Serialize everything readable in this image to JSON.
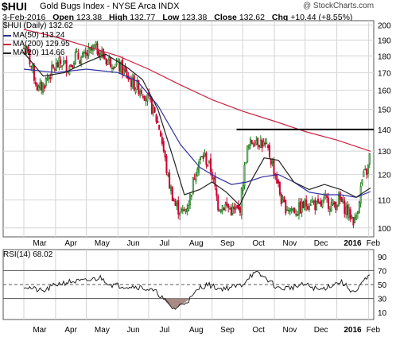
{
  "header": {
    "symbol": "$HUI",
    "name": "Gold Bugs Index - NYSE Arca INDX",
    "brand": "@ StockCharts.com",
    "date": "3-Feb-2016",
    "open_label": "Open",
    "open": "123.38",
    "high_label": "High",
    "high": "132.77",
    "low_label": "Low",
    "low": "123.38",
    "close_label": "Close",
    "close": "132.62",
    "chg_label": "Chg",
    "chg": "+10.44 (+8.55%)"
  },
  "legend": {
    "main": "$HUI (Daily) 132.62",
    "ma50": "MA(50) 113.24",
    "ma200": "MA(200) 129.95",
    "ma20": "MA(20) 114.66",
    "rsi": "RSI(14) 68.02"
  },
  "colors": {
    "up": "#1a7a1a",
    "down": "#cc0033",
    "ma50": "#3030a0",
    "ma200": "#cc2040",
    "ma20": "#222222",
    "rsi": "#111111",
    "rsi_fill": "#a88c84",
    "grid": "#d4d4d4",
    "resistance": "#000000"
  },
  "chart_data": [
    {
      "type": "candlestick",
      "title": "$HUI (Daily) 132.62",
      "x_tick_labels": [
        "Mar",
        "Apr",
        "May",
        "Jun",
        "Jul",
        "Aug",
        "Sep",
        "Oct",
        "Nov",
        "Dec",
        "2016",
        "Feb"
      ],
      "x_range": [
        "2015-03",
        "2016-02-03"
      ],
      "y_tick_labels": [
        "100",
        "110",
        "120",
        "130",
        "140",
        "150",
        "160",
        "170",
        "180",
        "190",
        "200"
      ],
      "ylim": [
        97,
        203
      ],
      "y_scale": "log",
      "grid": true,
      "series": [
        {
          "name": "$HUI (Daily) 132.62",
          "kind": "close_path_approx",
          "points": [
            [
              "2015-03-01",
              185
            ],
            [
              "2015-03-05",
              181
            ],
            [
              "2015-03-10",
              170
            ],
            [
              "2015-03-15",
              160
            ],
            [
              "2015-03-20",
              163
            ],
            [
              "2015-03-25",
              168
            ],
            [
              "2015-03-31",
              173
            ],
            [
              "2015-04-07",
              176
            ],
            [
              "2015-04-14",
              173
            ],
            [
              "2015-04-20",
              180
            ],
            [
              "2015-04-27",
              178
            ],
            [
              "2015-05-04",
              182
            ],
            [
              "2015-05-10",
              185
            ],
            [
              "2015-05-15",
              182
            ],
            [
              "2015-05-20",
              178
            ],
            [
              "2015-05-28",
              176
            ],
            [
              "2015-06-05",
              172
            ],
            [
              "2015-06-15",
              164
            ],
            [
              "2015-06-25",
              160
            ],
            [
              "2015-07-05",
              150
            ],
            [
              "2015-07-12",
              140
            ],
            [
              "2015-07-20",
              118
            ],
            [
              "2015-07-27",
              108
            ],
            [
              "2015-08-04",
              105
            ],
            [
              "2015-08-10",
              110
            ],
            [
              "2015-08-17",
              124
            ],
            [
              "2015-08-24",
              128
            ],
            [
              "2015-08-31",
              122
            ],
            [
              "2015-09-07",
              108
            ],
            [
              "2015-09-14",
              108
            ],
            [
              "2015-09-21",
              106
            ],
            [
              "2015-09-28",
              106
            ],
            [
              "2015-10-05",
              130
            ],
            [
              "2015-10-12",
              136
            ],
            [
              "2015-10-19",
              134
            ],
            [
              "2015-10-26",
              130
            ],
            [
              "2015-11-02",
              120
            ],
            [
              "2015-11-09",
              108
            ],
            [
              "2015-11-16",
              107
            ],
            [
              "2015-11-23",
              106
            ],
            [
              "2015-11-30",
              108
            ],
            [
              "2015-12-07",
              110
            ],
            [
              "2015-12-14",
              107
            ],
            [
              "2015-12-21",
              110
            ],
            [
              "2015-12-28",
              108
            ],
            [
              "2016-01-04",
              110
            ],
            [
              "2016-01-11",
              106
            ],
            [
              "2016-01-19",
              102
            ],
            [
              "2016-01-26",
              118
            ],
            [
              "2016-02-01",
              123
            ],
            [
              "2016-02-03",
              132.62
            ]
          ]
        },
        {
          "name": "MA(50) 113.24",
          "points": [
            [
              "2015-03-01",
              172
            ],
            [
              "2015-04-01",
              170
            ],
            [
              "2015-05-01",
              172
            ],
            [
              "2015-06-01",
              170
            ],
            [
              "2015-06-20",
              165
            ],
            [
              "2015-07-10",
              152
            ],
            [
              "2015-08-01",
              133
            ],
            [
              "2015-08-20",
              123
            ],
            [
              "2015-09-05",
              119
            ],
            [
              "2015-09-20",
              116
            ],
            [
              "2015-10-05",
              117
            ],
            [
              "2015-10-20",
              119
            ],
            [
              "2015-11-05",
              120
            ],
            [
              "2015-11-20",
              117
            ],
            [
              "2015-12-05",
              113
            ],
            [
              "2015-12-20",
              112
            ],
            [
              "2016-01-05",
              112
            ],
            [
              "2016-01-20",
              111
            ],
            [
              "2016-02-03",
              113.24
            ]
          ]
        },
        {
          "name": "MA(200) 129.95",
          "points": [
            [
              "2015-03-01",
              197
            ],
            [
              "2015-04-01",
              192
            ],
            [
              "2015-05-01",
              186
            ],
            [
              "2015-06-01",
              180
            ],
            [
              "2015-07-01",
              172
            ],
            [
              "2015-08-01",
              163
            ],
            [
              "2015-09-01",
              155
            ],
            [
              "2015-10-01",
              149
            ],
            [
              "2015-11-01",
              144
            ],
            [
              "2015-12-01",
              139
            ],
            [
              "2016-01-01",
              135
            ],
            [
              "2016-02-03",
              129.95
            ]
          ]
        },
        {
          "name": "MA(20) 114.66",
          "points": [
            [
              "2015-03-01",
              182
            ],
            [
              "2015-03-20",
              168
            ],
            [
              "2015-04-10",
              170
            ],
            [
              "2015-05-01",
              176
            ],
            [
              "2015-05-20",
              181
            ],
            [
              "2015-06-10",
              173
            ],
            [
              "2015-06-25",
              166
            ],
            [
              "2015-07-10",
              150
            ],
            [
              "2015-07-25",
              127
            ],
            [
              "2015-08-05",
              112
            ],
            [
              "2015-08-20",
              114
            ],
            [
              "2015-09-01",
              117
            ],
            [
              "2015-09-15",
              113
            ],
            [
              "2015-09-28",
              108
            ],
            [
              "2015-10-10",
              118
            ],
            [
              "2015-10-22",
              127
            ],
            [
              "2015-11-05",
              126
            ],
            [
              "2015-11-20",
              117
            ],
            [
              "2015-12-05",
              114
            ],
            [
              "2015-12-20",
              116
            ],
            [
              "2016-01-05",
              114
            ],
            [
              "2016-01-20",
              111
            ],
            [
              "2016-02-03",
              114.66
            ]
          ]
        }
      ],
      "annotations": [
        {
          "type": "horizontal_line",
          "y": 140,
          "x_start": "2015-09-25",
          "x_end": "2016-02-03"
        }
      ]
    },
    {
      "type": "line",
      "title": "RSI(14) 68.02",
      "x_tick_labels": [
        "Mar",
        "Apr",
        "May",
        "Jun",
        "Jul",
        "Aug",
        "Sep",
        "Oct",
        "Nov",
        "Dec",
        "2016",
        "Feb"
      ],
      "y_tick_labels": [
        "10",
        "30",
        "50",
        "70",
        "90"
      ],
      "ylim": [
        0,
        100
      ],
      "reference_lines": [
        30,
        50,
        70
      ],
      "grid": true,
      "series": [
        {
          "name": "RSI(14) 68.02",
          "points": [
            [
              "2015-03-01",
              48
            ],
            [
              "2015-03-10",
              44
            ],
            [
              "2015-03-20",
              40
            ],
            [
              "2015-04-01",
              50
            ],
            [
              "2015-04-15",
              54
            ],
            [
              "2015-05-01",
              55
            ],
            [
              "2015-05-15",
              60
            ],
            [
              "2015-05-25",
              50
            ],
            [
              "2015-06-05",
              48
            ],
            [
              "2015-06-20",
              47
            ],
            [
              "2015-07-01",
              43
            ],
            [
              "2015-07-10",
              38
            ],
            [
              "2015-07-20",
              22
            ],
            [
              "2015-07-26",
              15
            ],
            [
              "2015-08-03",
              22
            ],
            [
              "2015-08-12",
              31
            ],
            [
              "2015-08-20",
              46
            ],
            [
              "2015-08-28",
              50
            ],
            [
              "2015-09-08",
              44
            ],
            [
              "2015-09-20",
              46
            ],
            [
              "2015-10-01",
              50
            ],
            [
              "2015-10-08",
              63
            ],
            [
              "2015-10-15",
              66
            ],
            [
              "2015-10-25",
              58
            ],
            [
              "2015-11-05",
              44
            ],
            [
              "2015-11-18",
              46
            ],
            [
              "2015-12-01",
              50
            ],
            [
              "2015-12-15",
              42
            ],
            [
              "2015-12-28",
              50
            ],
            [
              "2016-01-05",
              54
            ],
            [
              "2016-01-15",
              42
            ],
            [
              "2016-01-20",
              38
            ],
            [
              "2016-01-27",
              55
            ],
            [
              "2016-02-01",
              60
            ],
            [
              "2016-02-03",
              68.02
            ]
          ]
        }
      ]
    }
  ]
}
